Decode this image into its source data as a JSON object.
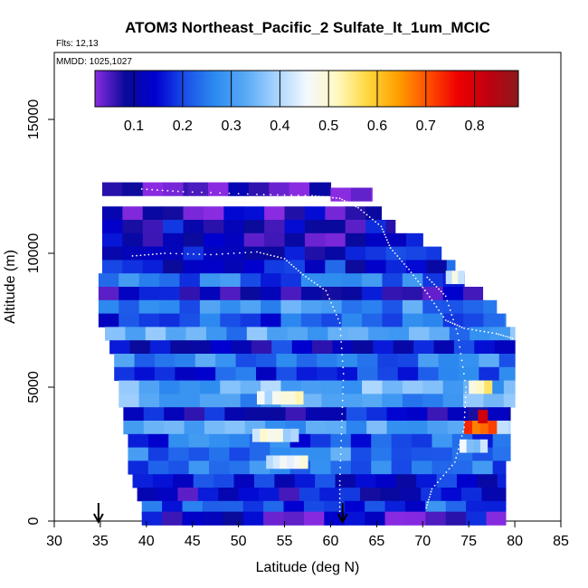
{
  "chart_data": {
    "type": "heatmap",
    "title": "ATOM3 Northeast_Pacific_2 Sulfate_lt_1um_MCIC",
    "flights_label": "Flts: 12,13",
    "dates_label": "MMDD: 1025,1027",
    "xlabel": "Latitude (deg N)",
    "ylabel": "Altitude (m)",
    "xlim": [
      30,
      85
    ],
    "ylim": [
      0,
      17500
    ],
    "x_ticks": [
      30,
      35,
      40,
      45,
      50,
      55,
      60,
      65,
      70,
      75,
      80,
      85
    ],
    "y_ticks": [
      0,
      5000,
      10000,
      15000
    ],
    "colorbar": {
      "range": [
        0.02,
        0.89
      ],
      "ticks": [
        0.1,
        0.2,
        0.3,
        0.4,
        0.5,
        0.6,
        0.7,
        0.8
      ],
      "colors": [
        "#8a2be2",
        "#0a0a9a",
        "#0000d0",
        "#1a50e8",
        "#2e8cf0",
        "#5aaaf5",
        "#a8d4ff",
        "#f4f8ff",
        "#fff9c0",
        "#ffd840",
        "#ffa000",
        "#ff5000",
        "#ee0000",
        "#c00010",
        "#8c1a1a"
      ]
    },
    "arrow_latitudes": [
      34.8,
      61.3
    ],
    "altitude_bins": [
      {
        "alt": 12400,
        "lat_min": 35.2,
        "lat_max": 44.5,
        "value": 0.07
      },
      {
        "alt": 12400,
        "lat_min": 44.5,
        "lat_max": 60,
        "value": 0.05
      },
      {
        "alt": 12200,
        "lat_min": 60,
        "lat_max": 64.5,
        "value": 0.04
      },
      {
        "alt": 11500,
        "lat_min": 35.2,
        "lat_max": 65.5,
        "value": 0.08
      },
      {
        "alt": 11000,
        "lat_min": 35.2,
        "lat_max": 67,
        "value": 0.11
      },
      {
        "alt": 10500,
        "lat_min": 35.2,
        "lat_max": 70,
        "value": 0.1
      },
      {
        "alt": 10000,
        "lat_min": 35.2,
        "lat_max": 72,
        "value": 0.13
      },
      {
        "alt": 9500,
        "lat_min": 35.2,
        "lat_max": 73.5,
        "value": 0.16
      },
      {
        "alt": 9000,
        "lat_min": 34.8,
        "lat_max": 74.5,
        "value": 0.24
      },
      {
        "alt": 8500,
        "lat_min": 34.8,
        "lat_max": 76.5,
        "value": 0.12
      },
      {
        "alt": 8000,
        "lat_min": 34.8,
        "lat_max": 78,
        "value": 0.28
      },
      {
        "alt": 7500,
        "lat_min": 34.8,
        "lat_max": 79,
        "value": 0.2
      },
      {
        "alt": 7000,
        "lat_min": 35.5,
        "lat_max": 80,
        "value": 0.3
      },
      {
        "alt": 6500,
        "lat_min": 36,
        "lat_max": 80,
        "value": 0.14
      },
      {
        "alt": 6000,
        "lat_min": 36.5,
        "lat_max": 80,
        "value": 0.27
      },
      {
        "alt": 5500,
        "lat_min": 36.5,
        "lat_max": 80,
        "value": 0.2
      },
      {
        "alt": 5000,
        "lat_min": 37,
        "lat_max": 80,
        "value": 0.33
      },
      {
        "alt": 4500,
        "lat_min": 37,
        "lat_max": 80,
        "value": 0.31
      },
      {
        "alt": 4000,
        "lat_min": 37.5,
        "lat_max": 79.5,
        "value": 0.13
      },
      {
        "alt": 3500,
        "lat_min": 37.5,
        "lat_max": 79.5,
        "value": 0.34
      },
      {
        "alt": 3000,
        "lat_min": 38,
        "lat_max": 79.5,
        "value": 0.22
      },
      {
        "alt": 2500,
        "lat_min": 38,
        "lat_max": 79.5,
        "value": 0.27
      },
      {
        "alt": 2000,
        "lat_min": 38,
        "lat_max": 79,
        "value": 0.24
      },
      {
        "alt": 1500,
        "lat_min": 38.5,
        "lat_max": 79,
        "value": 0.17
      },
      {
        "alt": 1000,
        "lat_min": 39,
        "lat_max": 79,
        "value": 0.12
      },
      {
        "alt": 500,
        "lat_min": 39.5,
        "lat_max": 79,
        "value": 0.21
      },
      {
        "alt": 100,
        "lat_min": 39.5,
        "lat_max": 79,
        "value": 0.1
      }
    ],
    "highlights": [
      {
        "alt": 5000,
        "lat_min": 75,
        "lat_max": 77.5,
        "value": 0.55
      },
      {
        "alt": 3500,
        "lat_min": 74.5,
        "lat_max": 78,
        "value": 0.72
      },
      {
        "alt": 3900,
        "lat_min": 76,
        "lat_max": 77,
        "value": 0.86
      },
      {
        "alt": 4600,
        "lat_min": 52,
        "lat_max": 57,
        "value": 0.46
      },
      {
        "alt": 3200,
        "lat_min": 51.5,
        "lat_max": 56.5,
        "value": 0.45
      },
      {
        "alt": 2200,
        "lat_min": 53,
        "lat_max": 57.5,
        "value": 0.43
      },
      {
        "alt": 2800,
        "lat_min": 74,
        "lat_max": 77,
        "value": 0.4
      },
      {
        "alt": 9100,
        "lat_min": 72.5,
        "lat_max": 74.5,
        "value": 0.44
      }
    ]
  }
}
